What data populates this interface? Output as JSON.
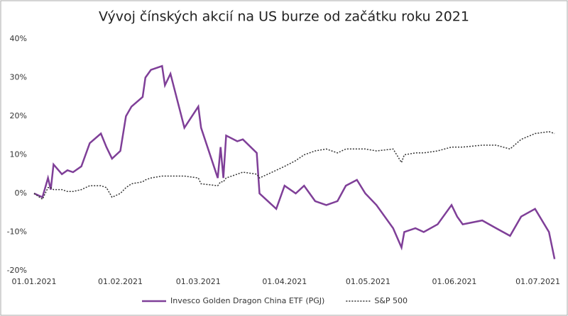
{
  "chart_data": {
    "type": "line",
    "title": "Vývoj čínských akcií na US burze od začátku roku 2021",
    "x": [
      "2021-01-01",
      "2021-01-04",
      "2021-01-06",
      "2021-01-07",
      "2021-01-08",
      "2021-01-11",
      "2021-01-13",
      "2021-01-15",
      "2021-01-18",
      "2021-01-21",
      "2021-01-25",
      "2021-01-27",
      "2021-01-29",
      "2021-02-01",
      "2021-02-03",
      "2021-02-05",
      "2021-02-09",
      "2021-02-10",
      "2021-02-12",
      "2021-02-16",
      "2021-02-17",
      "2021-02-19",
      "2021-02-24",
      "2021-03-01",
      "2021-03-02",
      "2021-03-08",
      "2021-03-09",
      "2021-03-10",
      "2021-03-11",
      "2021-03-15",
      "2021-03-17",
      "2021-03-22",
      "2021-03-23",
      "2021-03-29",
      "2021-04-01",
      "2021-04-05",
      "2021-04-08",
      "2021-04-12",
      "2021-04-16",
      "2021-04-20",
      "2021-04-23",
      "2021-04-27",
      "2021-04-30",
      "2021-05-04",
      "2021-05-10",
      "2021-05-13",
      "2021-05-14",
      "2021-05-18",
      "2021-05-21",
      "2021-05-26",
      "2021-05-31",
      "2021-06-02",
      "2021-06-04",
      "2021-06-11",
      "2021-06-16",
      "2021-06-21",
      "2021-06-25",
      "2021-06-30",
      "2021-07-05",
      "2021-07-07"
    ],
    "series": [
      {
        "name": "Invesco Golden Dragon China ETF (PGJ)",
        "color": "#7f3f98",
        "line_style": "solid",
        "values": [
          0,
          -1,
          4,
          1,
          7.5,
          5,
          6,
          5.5,
          7,
          13,
          15.5,
          12,
          9,
          11,
          20,
          22.5,
          25,
          30,
          32,
          33,
          28,
          31,
          17,
          22.5,
          17,
          4,
          12,
          4,
          15,
          13.5,
          14,
          10.5,
          0,
          -4,
          2,
          0,
          2,
          -2,
          -3,
          -2,
          2,
          3.5,
          0,
          -3,
          -9,
          -14,
          -10,
          -9,
          -10,
          -8,
          -3,
          -6,
          -8,
          -7,
          -9,
          -11,
          -6,
          -4,
          -10,
          -17
        ]
      },
      {
        "name": "S&P 500",
        "color": "#333333",
        "line_style": "dotted",
        "values": [
          0,
          -1.5,
          1.5,
          1.5,
          1,
          1,
          0.5,
          0.5,
          1,
          2,
          2,
          1.5,
          -1,
          0,
          1.5,
          2.5,
          3,
          3.5,
          4,
          4.5,
          4.5,
          4.5,
          4.5,
          4,
          2.5,
          2,
          3,
          3,
          4,
          5,
          5.5,
          5,
          4,
          6,
          7,
          8.5,
          10,
          11,
          11.5,
          10.5,
          11.5,
          11.5,
          11.5,
          11,
          11.5,
          8,
          10,
          10.5,
          10.5,
          11,
          12,
          12,
          12,
          12.5,
          12.5,
          11.5,
          14,
          15.5,
          16,
          15.5
        ]
      }
    ],
    "xlim": [
      "2021-01-01",
      "2021-07-08"
    ],
    "xticks": [
      {
        "value": "2021-01-01",
        "label": "01.01.2021"
      },
      {
        "value": "2021-02-01",
        "label": "01.02.2021"
      },
      {
        "value": "2021-03-01",
        "label": "01.03.2021"
      },
      {
        "value": "2021-04-01",
        "label": "01.04.2021"
      },
      {
        "value": "2021-05-01",
        "label": "01.05.2021"
      },
      {
        "value": "2021-06-01",
        "label": "01.06.2021"
      },
      {
        "value": "2021-07-01",
        "label": "01.07.2021"
      }
    ],
    "ylim": [
      -20,
      40
    ],
    "yticks": [
      {
        "value": -20,
        "label": "-20%"
      },
      {
        "value": -10,
        "label": "-10%"
      },
      {
        "value": 0,
        "label": "0%"
      },
      {
        "value": 10,
        "label": "10%"
      },
      {
        "value": 20,
        "label": "20%"
      },
      {
        "value": 30,
        "label": "30%"
      },
      {
        "value": 40,
        "label": "40%"
      }
    ],
    "grid": false,
    "legend": "bottom"
  }
}
